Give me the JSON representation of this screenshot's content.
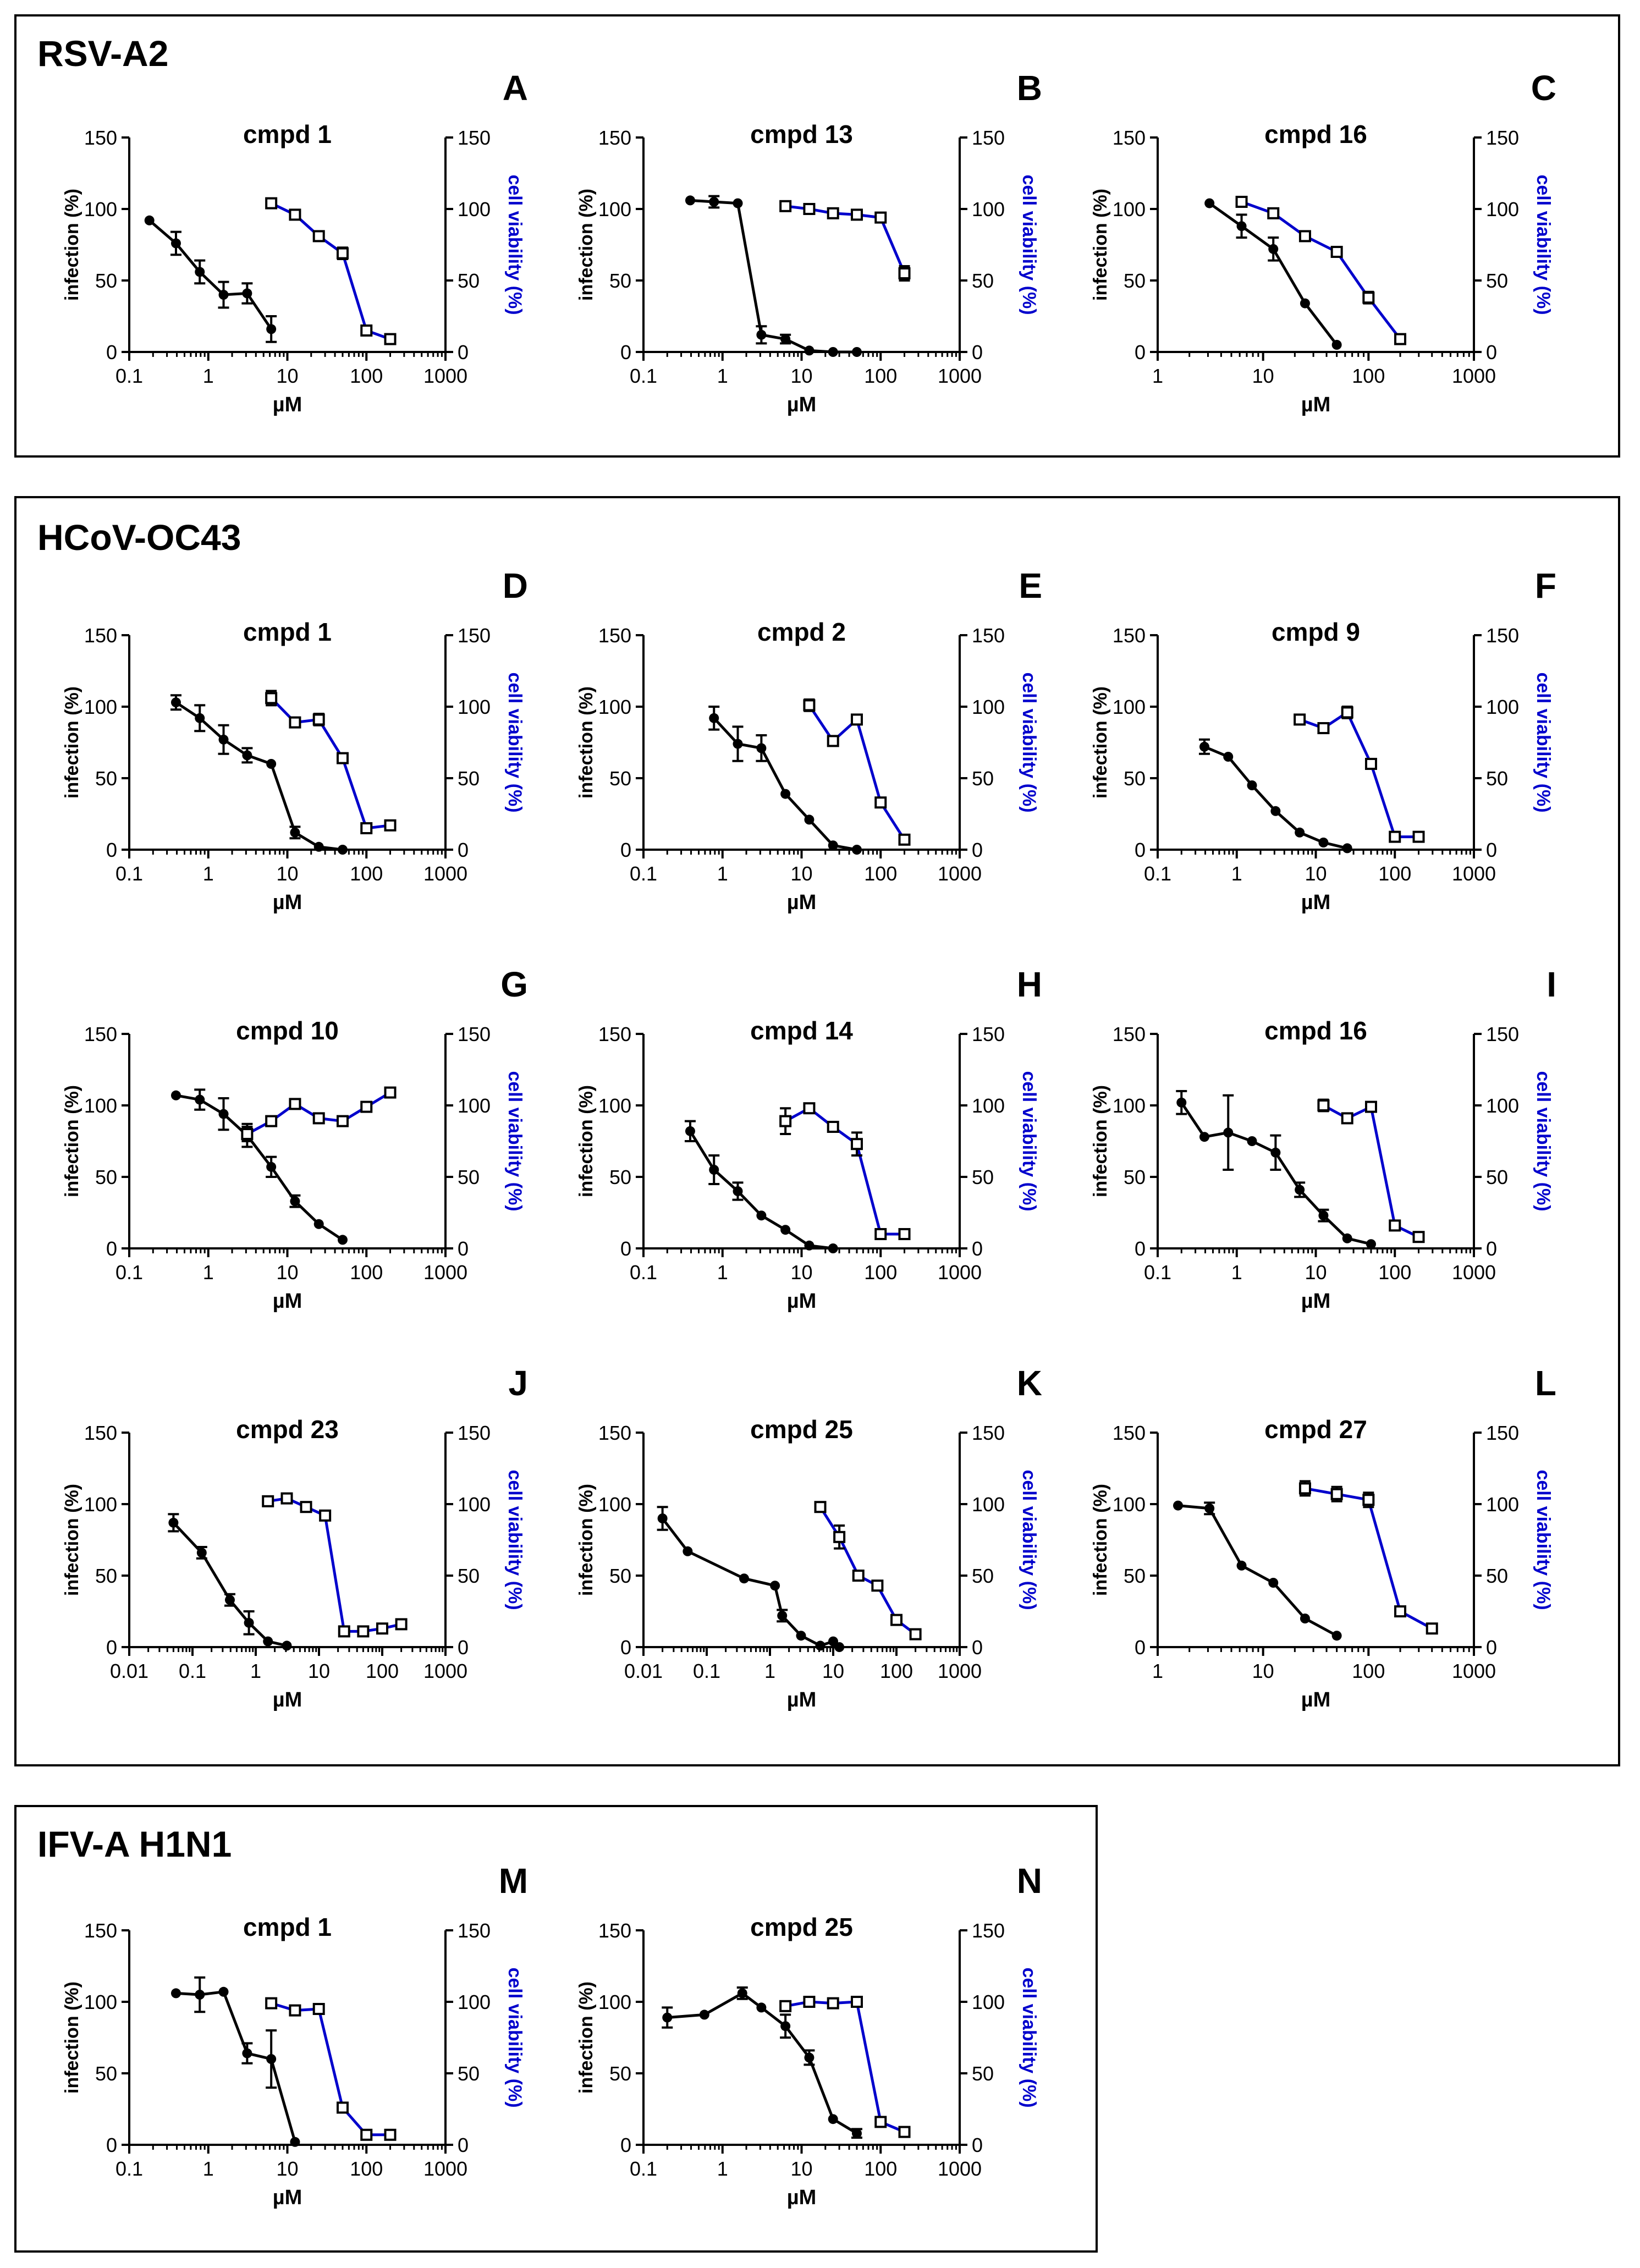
{
  "colors": {
    "infection": "#000000",
    "viability": "#0000cc"
  },
  "groups": [
    {
      "title": "RSV-A2"
    },
    {
      "title": "HCoV-OC43"
    },
    {
      "title": "IFV-A H1N1"
    }
  ],
  "common": {
    "left_label": "infection (%)",
    "right_label": "cell viability (%)",
    "x_label": "µM",
    "y_ticks": [
      "0",
      "50",
      "100",
      "150"
    ]
  },
  "chart_data": [
    {
      "type": "line",
      "panel": "A",
      "group": "RSV-A2",
      "title": "cmpd 1",
      "xscale": "log",
      "xlim": [
        0.1,
        1000
      ],
      "x_ticks": [
        "0.1",
        "1",
        "10",
        "100",
        "1000"
      ],
      "ylim": [
        0,
        150
      ],
      "series": [
        {
          "name": "infection (%)",
          "axis": "left",
          "marker": "circle",
          "x": [
            0.18,
            0.39,
            0.78,
            1.56,
            3.1,
            6.25
          ],
          "y": [
            92,
            76,
            56,
            40,
            41,
            16
          ],
          "err": [
            0,
            8,
            8,
            9,
            7,
            9
          ]
        },
        {
          "name": "cell viability (%)",
          "axis": "right",
          "marker": "square",
          "x": [
            6.25,
            12.5,
            25,
            50,
            100,
            200
          ],
          "y": [
            104,
            96,
            81,
            69,
            15,
            9
          ],
          "err": [
            0,
            0,
            0,
            4,
            2,
            0
          ]
        }
      ]
    },
    {
      "type": "line",
      "panel": "B",
      "group": "RSV-A2",
      "title": "cmpd 13",
      "xscale": "log",
      "xlim": [
        0.1,
        1000
      ],
      "x_ticks": [
        "0.1",
        "1",
        "10",
        "100",
        "1000"
      ],
      "ylim": [
        0,
        150
      ],
      "series": [
        {
          "name": "infection (%)",
          "axis": "left",
          "marker": "circle",
          "x": [
            0.39,
            0.78,
            1.56,
            3.1,
            6.25,
            12.5,
            25,
            50
          ],
          "y": [
            106,
            105,
            104,
            12,
            9,
            1,
            0,
            0
          ],
          "err": [
            0,
            4,
            0,
            6,
            3,
            0,
            0,
            0
          ]
        },
        {
          "name": "cell viability (%)",
          "axis": "right",
          "marker": "square",
          "x": [
            6.25,
            12.5,
            25,
            50,
            100,
            200
          ],
          "y": [
            102,
            100,
            97,
            96,
            94,
            55
          ],
          "err": [
            0,
            0,
            0,
            0,
            0,
            5
          ]
        }
      ]
    },
    {
      "type": "line",
      "panel": "C",
      "group": "RSV-A2",
      "title": "cmpd 16",
      "xscale": "log",
      "xlim": [
        1,
        1000
      ],
      "x_ticks": [
        "1",
        "10",
        "100",
        "1000"
      ],
      "ylim": [
        0,
        150
      ],
      "series": [
        {
          "name": "infection (%)",
          "axis": "left",
          "marker": "circle",
          "x": [
            3.1,
            6.25,
            12.5,
            25,
            50
          ],
          "y": [
            104,
            88,
            72,
            34,
            5
          ],
          "err": [
            0,
            8,
            8,
            0,
            0
          ]
        },
        {
          "name": "cell viability (%)",
          "axis": "right",
          "marker": "square",
          "x": [
            6.25,
            12.5,
            25,
            50,
            100,
            200
          ],
          "y": [
            105,
            97,
            81,
            70,
            38,
            9
          ],
          "err": [
            0,
            0,
            0,
            0,
            4,
            0
          ]
        }
      ]
    },
    {
      "type": "line",
      "panel": "D",
      "group": "HCoV-OC43",
      "title": "cmpd 1",
      "xscale": "log",
      "xlim": [
        0.1,
        1000
      ],
      "x_ticks": [
        "0.1",
        "1",
        "10",
        "100",
        "1000"
      ],
      "ylim": [
        0,
        150
      ],
      "series": [
        {
          "name": "infection (%)",
          "axis": "left",
          "marker": "circle",
          "x": [
            0.39,
            0.78,
            1.56,
            3.1,
            6.25,
            12.5,
            25,
            50
          ],
          "y": [
            103,
            92,
            77,
            66,
            60,
            12,
            2,
            0
          ],
          "err": [
            5,
            9,
            10,
            5,
            0,
            4,
            0,
            0
          ]
        },
        {
          "name": "cell viability (%)",
          "axis": "right",
          "marker": "square",
          "x": [
            6.25,
            12.5,
            25,
            50,
            100,
            200
          ],
          "y": [
            106,
            89,
            91,
            64,
            15,
            17
          ],
          "err": [
            5,
            3,
            4,
            0,
            0,
            0
          ]
        }
      ]
    },
    {
      "type": "line",
      "panel": "E",
      "group": "HCoV-OC43",
      "title": "cmpd 2",
      "xscale": "log",
      "xlim": [
        0.1,
        1000
      ],
      "x_ticks": [
        "0.1",
        "1",
        "10",
        "100",
        "1000"
      ],
      "ylim": [
        0,
        150
      ],
      "series": [
        {
          "name": "infection (%)",
          "axis": "left",
          "marker": "circle",
          "x": [
            0.78,
            1.56,
            3.1,
            6.25,
            12.5,
            25,
            50
          ],
          "y": [
            92,
            74,
            71,
            39,
            21,
            3,
            0
          ],
          "err": [
            8,
            12,
            9,
            0,
            0,
            0,
            0
          ]
        },
        {
          "name": "cell viability (%)",
          "axis": "right",
          "marker": "square",
          "x": [
            12.5,
            25,
            50,
            100,
            200
          ],
          "y": [
            101,
            76,
            91,
            33,
            7
          ],
          "err": [
            4,
            0,
            0,
            0,
            0
          ]
        }
      ]
    },
    {
      "type": "line",
      "panel": "F",
      "group": "HCoV-OC43",
      "title": "cmpd 9",
      "xscale": "log",
      "xlim": [
        0.1,
        1000
      ],
      "x_ticks": [
        "0.1",
        "1",
        "10",
        "100",
        "1000"
      ],
      "ylim": [
        0,
        150
      ],
      "series": [
        {
          "name": "infection (%)",
          "axis": "left",
          "marker": "circle",
          "x": [
            0.39,
            0.78,
            1.56,
            3.1,
            6.25,
            12.5,
            25
          ],
          "y": [
            72,
            65,
            45,
            27,
            12,
            5,
            1
          ],
          "err": [
            5,
            0,
            0,
            0,
            0,
            0,
            0
          ]
        },
        {
          "name": "cell viability (%)",
          "axis": "right",
          "marker": "square",
          "x": [
            6.25,
            12.5,
            25,
            50,
            100,
            200
          ],
          "y": [
            91,
            85,
            96,
            60,
            9,
            9
          ],
          "err": [
            0,
            0,
            4,
            0,
            0,
            0
          ]
        }
      ]
    },
    {
      "type": "line",
      "panel": "G",
      "group": "HCoV-OC43",
      "title": "cmpd 10",
      "xscale": "log",
      "xlim": [
        0.1,
        1000
      ],
      "x_ticks": [
        "0.1",
        "1",
        "10",
        "100",
        "1000"
      ],
      "ylim": [
        0,
        150
      ],
      "series": [
        {
          "name": "infection (%)",
          "axis": "left",
          "marker": "circle",
          "x": [
            0.39,
            0.78,
            1.56,
            3.1,
            6.25,
            12.5,
            25,
            50
          ],
          "y": [
            107,
            104,
            94,
            79,
            57,
            33,
            17,
            6
          ],
          "err": [
            0,
            7,
            11,
            8,
            7,
            4,
            0,
            0
          ]
        },
        {
          "name": "cell viability (%)",
          "axis": "right",
          "marker": "square",
          "x": [
            3.1,
            6.25,
            12.5,
            25,
            50,
            100,
            200
          ],
          "y": [
            80,
            89,
            101,
            91,
            89,
            99,
            109
          ],
          "err": [
            5,
            0,
            0,
            0,
            0,
            0,
            0
          ]
        }
      ]
    },
    {
      "type": "line",
      "panel": "H",
      "group": "HCoV-OC43",
      "title": "cmpd 14",
      "xscale": "log",
      "xlim": [
        0.1,
        1000
      ],
      "x_ticks": [
        "0.1",
        "1",
        "10",
        "100",
        "1000"
      ],
      "ylim": [
        0,
        150
      ],
      "series": [
        {
          "name": "infection (%)",
          "axis": "left",
          "marker": "circle",
          "x": [
            0.39,
            0.78,
            1.56,
            3.1,
            6.25,
            12.5,
            25
          ],
          "y": [
            82,
            55,
            40,
            23,
            13,
            2,
            0
          ],
          "err": [
            7,
            10,
            6,
            0,
            0,
            0,
            0
          ]
        },
        {
          "name": "cell viability (%)",
          "axis": "right",
          "marker": "square",
          "x": [
            6.25,
            12.5,
            25,
            50,
            100,
            200
          ],
          "y": [
            89,
            98,
            85,
            73,
            10,
            10
          ],
          "err": [
            9,
            0,
            0,
            8,
            0,
            0
          ]
        }
      ]
    },
    {
      "type": "line",
      "panel": "I",
      "group": "HCoV-OC43",
      "title": "cmpd 16",
      "xscale": "log",
      "xlim": [
        0.1,
        1000
      ],
      "x_ticks": [
        "0.1",
        "1",
        "10",
        "100",
        "1000"
      ],
      "ylim": [
        0,
        150
      ],
      "series": [
        {
          "name": "infection (%)",
          "axis": "left",
          "marker": "circle",
          "x": [
            0.2,
            0.39,
            0.78,
            1.56,
            3.1,
            6.25,
            12.5,
            25,
            50
          ],
          "y": [
            102,
            78,
            81,
            75,
            67,
            41,
            23,
            7,
            3
          ],
          "err": [
            8,
            0,
            26,
            0,
            12,
            5,
            4,
            0,
            0
          ]
        },
        {
          "name": "cell viability (%)",
          "axis": "right",
          "marker": "square",
          "x": [
            12.5,
            25,
            50,
            100,
            200
          ],
          "y": [
            100,
            91,
            99,
            16,
            8
          ],
          "err": [
            4,
            0,
            0,
            0,
            0
          ]
        }
      ]
    },
    {
      "type": "line",
      "panel": "J",
      "group": "HCoV-OC43",
      "title": "cmpd 23",
      "xscale": "log",
      "xlim": [
        0.01,
        1000
      ],
      "x_ticks": [
        "0.01",
        "0.1",
        "1",
        "10",
        "100",
        "1000"
      ],
      "ylim": [
        0,
        150
      ],
      "series": [
        {
          "name": "infection (%)",
          "axis": "left",
          "marker": "circle",
          "x": [
            0.05,
            0.14,
            0.39,
            0.78,
            1.56,
            3.1
          ],
          "y": [
            87,
            66,
            33,
            17,
            4,
            1
          ],
          "err": [
            6,
            4,
            4,
            8,
            0,
            0
          ]
        },
        {
          "name": "cell viability (%)",
          "axis": "right",
          "marker": "square",
          "x": [
            1.56,
            3.1,
            6.25,
            12.5,
            25,
            50,
            100,
            200
          ],
          "y": [
            102,
            104,
            98,
            92,
            11,
            11,
            13,
            16
          ],
          "err": [
            0,
            0,
            0,
            0,
            0,
            0,
            0,
            0
          ]
        }
      ]
    },
    {
      "type": "line",
      "panel": "K",
      "group": "HCoV-OC43",
      "title": "cmpd 25",
      "xscale": "log",
      "xlim": [
        0.01,
        1000
      ],
      "x_ticks": [
        "0.01",
        "0.1",
        "1",
        "10",
        "100",
        "1000"
      ],
      "ylim": [
        0,
        150
      ],
      "series": [
        {
          "name": "infection (%)",
          "axis": "left",
          "marker": "circle",
          "x": [
            0.02,
            0.05,
            0.39,
            1.2,
            1.56,
            3.1,
            6.25,
            10,
            12.5
          ],
          "y": [
            90,
            67,
            48,
            43,
            22,
            8,
            1,
            4,
            0
          ],
          "err": [
            8,
            0,
            0,
            0,
            4,
            0,
            0,
            0,
            0
          ]
        },
        {
          "name": "cell viability (%)",
          "axis": "right",
          "marker": "square",
          "x": [
            6.25,
            12.5,
            25,
            50,
            100,
            200
          ],
          "y": [
            98,
            77,
            50,
            43,
            19,
            9
          ],
          "err": [
            0,
            8,
            0,
            0,
            0,
            0
          ]
        }
      ]
    },
    {
      "type": "line",
      "panel": "L",
      "group": "HCoV-OC43",
      "title": "cmpd 27",
      "xscale": "log",
      "xlim": [
        1,
        1000
      ],
      "x_ticks": [
        "1",
        "10",
        "100",
        "1000"
      ],
      "ylim": [
        0,
        150
      ],
      "series": [
        {
          "name": "infection (%)",
          "axis": "left",
          "marker": "circle",
          "x": [
            1.56,
            3.1,
            6.25,
            12.5,
            25,
            50
          ],
          "y": [
            99,
            97,
            57,
            45,
            20,
            8
          ],
          "err": [
            0,
            4,
            0,
            0,
            0,
            0
          ]
        },
        {
          "name": "cell viability (%)",
          "axis": "right",
          "marker": "square",
          "x": [
            25,
            50,
            100,
            200,
            400
          ],
          "y": [
            111,
            107,
            103,
            25,
            13
          ],
          "err": [
            5,
            5,
            5,
            0,
            0
          ]
        }
      ]
    },
    {
      "type": "line",
      "panel": "M",
      "group": "IFV-A H1N1",
      "title": "cmpd 1",
      "xscale": "log",
      "xlim": [
        0.1,
        1000
      ],
      "x_ticks": [
        "0.1",
        "1",
        "10",
        "100",
        "1000"
      ],
      "ylim": [
        0,
        150
      ],
      "series": [
        {
          "name": "infection (%)",
          "axis": "left",
          "marker": "circle",
          "x": [
            0.39,
            0.78,
            1.56,
            3.1,
            6.25,
            12.5
          ],
          "y": [
            106,
            105,
            107,
            64,
            60,
            2
          ],
          "err": [
            0,
            12,
            0,
            7,
            20,
            0
          ]
        },
        {
          "name": "cell viability (%)",
          "axis": "right",
          "marker": "square",
          "x": [
            6.25,
            12.5,
            25,
            50,
            100,
            200
          ],
          "y": [
            99,
            94,
            95,
            26,
            7,
            7
          ],
          "err": [
            0,
            0,
            0,
            0,
            0,
            0
          ]
        }
      ]
    },
    {
      "type": "line",
      "panel": "N",
      "group": "IFV-A H1N1",
      "title": "cmpd 25",
      "xscale": "log",
      "xlim": [
        0.1,
        1000
      ],
      "x_ticks": [
        "0.1",
        "1",
        "10",
        "100",
        "1000"
      ],
      "ylim": [
        0,
        150
      ],
      "series": [
        {
          "name": "infection (%)",
          "axis": "left",
          "marker": "circle",
          "x": [
            0.2,
            0.59,
            1.78,
            3.1,
            6.25,
            12.5,
            25,
            50
          ],
          "y": [
            89,
            91,
            106,
            96,
            83,
            61,
            18,
            8
          ],
          "err": [
            7,
            0,
            4,
            0,
            8,
            5,
            0,
            3
          ]
        },
        {
          "name": "cell viability (%)",
          "axis": "right",
          "marker": "square",
          "x": [
            6.25,
            12.5,
            25,
            50,
            100,
            200
          ],
          "y": [
            97,
            100,
            99,
            100,
            16,
            9
          ],
          "err": [
            0,
            0,
            0,
            0,
            0,
            0
          ]
        }
      ]
    }
  ]
}
